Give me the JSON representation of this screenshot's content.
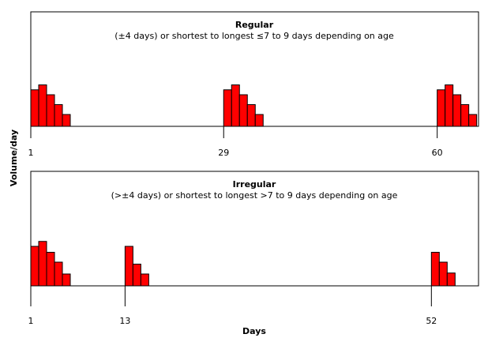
{
  "chart_data": [
    {
      "type": "bar",
      "title": "Regular",
      "subtitle": "(±4 days) or shortest to longest ≤7 to 9 days depending on age",
      "xlim": [
        1,
        66
      ],
      "ticks": [
        1,
        29,
        60
      ],
      "bleeding_episodes": [
        {
          "start_day": 1,
          "values": [
            3.7,
            4.2,
            3.2,
            2.2,
            1.2
          ]
        },
        {
          "start_day": 29,
          "values": [
            3.7,
            4.2,
            3.2,
            2.2,
            1.2
          ]
        },
        {
          "start_day": 60,
          "values": [
            3.7,
            4.2,
            3.2,
            2.2,
            1.2
          ]
        }
      ]
    },
    {
      "type": "bar",
      "title": "Irregular",
      "subtitle": "(>±4 days) or shortest to longest >7 to 9 days depending on age",
      "xlim": [
        1,
        58
      ],
      "ticks": [
        1,
        13,
        52
      ],
      "bleeding_episodes": [
        {
          "start_day": 1,
          "values": [
            4.0,
            4.5,
            3.4,
            2.4,
            1.2
          ]
        },
        {
          "start_day": 13,
          "values": [
            4.0,
            2.2,
            1.2
          ]
        },
        {
          "start_day": 52,
          "values": [
            3.4,
            2.4,
            1.3
          ]
        }
      ]
    }
  ],
  "axes": {
    "ylabel": "Volume/day",
    "xlabel": "Days"
  },
  "colors": {
    "bar_fill": "#ff0000",
    "bar_stroke": "#000000"
  }
}
